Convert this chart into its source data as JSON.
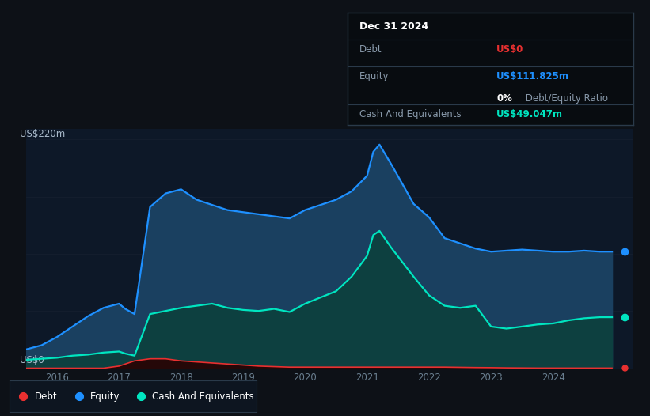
{
  "bg_color": "#0d1117",
  "plot_bg_color": "#0d1828",
  "ylabel": "US$220m",
  "y0_label": "US$0",
  "ylim": [
    0,
    230
  ],
  "xlim": [
    2015.5,
    2025.3
  ],
  "xtick_labels": [
    "2016",
    "2017",
    "2018",
    "2019",
    "2020",
    "2021",
    "2022",
    "2023",
    "2024"
  ],
  "xtick_positions": [
    2016,
    2017,
    2018,
    2019,
    2020,
    2021,
    2022,
    2023,
    2024
  ],
  "equity_color": "#1e90ff",
  "equity_fill_top": "#1a4060",
  "equity_fill_bot": "#0d1828",
  "cash_color": "#00e5c0",
  "cash_fill_top": "#0d4040",
  "cash_fill_bot": "#0d2830",
  "debt_color": "#e83030",
  "debt_fill": "#250808",
  "grid_color": "#162030",
  "tooltip_bg": "#080c10",
  "tooltip_border": "#2a3a4a",
  "legend_bg": "#0d1520",
  "legend_border": "#2a3a4a",
  "years": [
    2015.5,
    2015.75,
    2016.0,
    2016.25,
    2016.5,
    2016.75,
    2017.0,
    2017.1,
    2017.25,
    2017.5,
    2017.75,
    2018.0,
    2018.25,
    2018.5,
    2018.75,
    2019.0,
    2019.25,
    2019.5,
    2019.75,
    2020.0,
    2020.25,
    2020.5,
    2020.75,
    2021.0,
    2021.1,
    2021.2,
    2021.4,
    2021.75,
    2022.0,
    2022.25,
    2022.5,
    2022.75,
    2023.0,
    2023.25,
    2023.5,
    2023.75,
    2024.0,
    2024.25,
    2024.5,
    2024.75,
    2024.95
  ],
  "equity": [
    18,
    22,
    30,
    40,
    50,
    58,
    62,
    57,
    52,
    155,
    168,
    172,
    162,
    157,
    152,
    150,
    148,
    146,
    144,
    152,
    157,
    162,
    170,
    185,
    208,
    215,
    195,
    158,
    145,
    125,
    120,
    115,
    112,
    113,
    114,
    113,
    112,
    112,
    113,
    112,
    112
  ],
  "cash": [
    8,
    9,
    10,
    12,
    13,
    15,
    16,
    14,
    12,
    52,
    55,
    58,
    60,
    62,
    58,
    56,
    55,
    57,
    54,
    62,
    68,
    74,
    88,
    108,
    128,
    132,
    115,
    88,
    70,
    60,
    58,
    60,
    40,
    38,
    40,
    42,
    43,
    46,
    48,
    49,
    49
  ],
  "debt": [
    0,
    0,
    0,
    0,
    0,
    0,
    2,
    4,
    7,
    9,
    9,
    7,
    6,
    5,
    4,
    3,
    2,
    1.5,
    1,
    1,
    1,
    1,
    1,
    1,
    1,
    1,
    1,
    1,
    1,
    1,
    0.8,
    0.6,
    0.5,
    0.3,
    0.2,
    0.1,
    0.1,
    0.1,
    0.1,
    0.1,
    0.1
  ]
}
